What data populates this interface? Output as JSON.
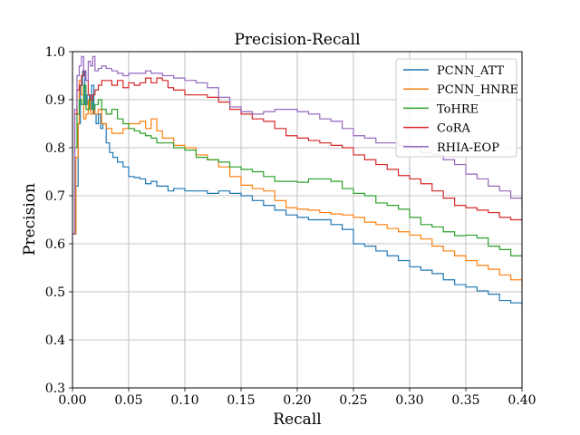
{
  "chart_data": {
    "type": "line",
    "title": "Precision-Recall",
    "xlabel": "Recall",
    "ylabel": "Precision",
    "xlim": [
      0.0,
      0.4
    ],
    "ylim": [
      0.3,
      1.0
    ],
    "grid": true,
    "legend_position": "top-right",
    "x_ticks": [
      "0.00",
      "0.05",
      "0.10",
      "0.15",
      "0.20",
      "0.25",
      "0.30",
      "0.35",
      "0.40"
    ],
    "y_ticks": [
      "0.3",
      "0.4",
      "0.5",
      "0.6",
      "0.7",
      "0.8",
      "0.9",
      "1.0"
    ],
    "series": [
      {
        "name": "PCNN_ATT",
        "color": "#1f77b4",
        "points": [
          [
            0.0,
            0.62
          ],
          [
            0.003,
            0.72
          ],
          [
            0.005,
            0.85
          ],
          [
            0.007,
            0.93
          ],
          [
            0.009,
            0.96
          ],
          [
            0.011,
            0.89
          ],
          [
            0.013,
            0.91
          ],
          [
            0.015,
            0.88
          ],
          [
            0.017,
            0.93
          ],
          [
            0.019,
            0.87
          ],
          [
            0.021,
            0.85
          ],
          [
            0.023,
            0.87
          ],
          [
            0.025,
            0.84
          ],
          [
            0.027,
            0.85
          ],
          [
            0.03,
            0.81
          ],
          [
            0.033,
            0.79
          ],
          [
            0.036,
            0.78
          ],
          [
            0.04,
            0.77
          ],
          [
            0.045,
            0.76
          ],
          [
            0.05,
            0.74
          ],
          [
            0.055,
            0.738
          ],
          [
            0.06,
            0.735
          ],
          [
            0.065,
            0.725
          ],
          [
            0.07,
            0.73
          ],
          [
            0.075,
            0.72
          ],
          [
            0.08,
            0.72
          ],
          [
            0.085,
            0.71
          ],
          [
            0.09,
            0.715
          ],
          [
            0.1,
            0.71
          ],
          [
            0.11,
            0.71
          ],
          [
            0.12,
            0.705
          ],
          [
            0.13,
            0.71
          ],
          [
            0.14,
            0.705
          ],
          [
            0.15,
            0.7
          ],
          [
            0.16,
            0.69
          ],
          [
            0.17,
            0.68
          ],
          [
            0.18,
            0.67
          ],
          [
            0.19,
            0.66
          ],
          [
            0.2,
            0.655
          ],
          [
            0.21,
            0.65
          ],
          [
            0.22,
            0.65
          ],
          [
            0.23,
            0.64
          ],
          [
            0.24,
            0.63
          ],
          [
            0.25,
            0.6
          ],
          [
            0.26,
            0.595
          ],
          [
            0.27,
            0.585
          ],
          [
            0.28,
            0.575
          ],
          [
            0.29,
            0.565
          ],
          [
            0.3,
            0.552
          ],
          [
            0.31,
            0.545
          ],
          [
            0.32,
            0.538
          ],
          [
            0.33,
            0.525
          ],
          [
            0.34,
            0.515
          ],
          [
            0.35,
            0.51
          ],
          [
            0.36,
            0.502
          ],
          [
            0.37,
            0.495
          ],
          [
            0.38,
            0.482
          ],
          [
            0.39,
            0.477
          ],
          [
            0.4,
            0.47
          ]
        ]
      },
      {
        "name": "PCNN_HNRE",
        "color": "#ff7f0e",
        "points": [
          [
            0.0,
            0.62
          ],
          [
            0.003,
            0.78
          ],
          [
            0.005,
            0.85
          ],
          [
            0.006,
            0.94
          ],
          [
            0.008,
            0.91
          ],
          [
            0.01,
            0.86
          ],
          [
            0.012,
            0.87
          ],
          [
            0.014,
            0.9
          ],
          [
            0.016,
            0.87
          ],
          [
            0.018,
            0.88
          ],
          [
            0.02,
            0.87
          ],
          [
            0.023,
            0.88
          ],
          [
            0.026,
            0.85
          ],
          [
            0.03,
            0.84
          ],
          [
            0.035,
            0.83
          ],
          [
            0.04,
            0.83
          ],
          [
            0.045,
            0.84
          ],
          [
            0.05,
            0.85
          ],
          [
            0.055,
            0.85
          ],
          [
            0.06,
            0.855
          ],
          [
            0.065,
            0.84
          ],
          [
            0.07,
            0.86
          ],
          [
            0.075,
            0.835
          ],
          [
            0.08,
            0.82
          ],
          [
            0.09,
            0.805
          ],
          [
            0.1,
            0.8
          ],
          [
            0.11,
            0.785
          ],
          [
            0.12,
            0.775
          ],
          [
            0.13,
            0.76
          ],
          [
            0.14,
            0.74
          ],
          [
            0.15,
            0.722
          ],
          [
            0.16,
            0.715
          ],
          [
            0.17,
            0.71
          ],
          [
            0.18,
            0.69
          ],
          [
            0.19,
            0.675
          ],
          [
            0.2,
            0.672
          ],
          [
            0.21,
            0.67
          ],
          [
            0.22,
            0.665
          ],
          [
            0.23,
            0.662
          ],
          [
            0.24,
            0.66
          ],
          [
            0.25,
            0.655
          ],
          [
            0.26,
            0.645
          ],
          [
            0.27,
            0.64
          ],
          [
            0.28,
            0.632
          ],
          [
            0.29,
            0.625
          ],
          [
            0.3,
            0.618
          ],
          [
            0.31,
            0.61
          ],
          [
            0.32,
            0.595
          ],
          [
            0.33,
            0.585
          ],
          [
            0.34,
            0.575
          ],
          [
            0.35,
            0.565
          ],
          [
            0.36,
            0.555
          ],
          [
            0.37,
            0.547
          ],
          [
            0.38,
            0.535
          ],
          [
            0.39,
            0.525
          ],
          [
            0.4,
            0.51
          ]
        ]
      },
      {
        "name": "ToHRE",
        "color": "#2ca02c",
        "points": [
          [
            0.0,
            0.62
          ],
          [
            0.002,
            0.8
          ],
          [
            0.004,
            0.87
          ],
          [
            0.006,
            0.9
          ],
          [
            0.008,
            0.89
          ],
          [
            0.01,
            0.93
          ],
          [
            0.012,
            0.88
          ],
          [
            0.015,
            0.9
          ],
          [
            0.018,
            0.88
          ],
          [
            0.02,
            0.89
          ],
          [
            0.023,
            0.9
          ],
          [
            0.026,
            0.88
          ],
          [
            0.03,
            0.87
          ],
          [
            0.035,
            0.88
          ],
          [
            0.04,
            0.86
          ],
          [
            0.045,
            0.85
          ],
          [
            0.05,
            0.84
          ],
          [
            0.055,
            0.835
          ],
          [
            0.06,
            0.83
          ],
          [
            0.065,
            0.825
          ],
          [
            0.07,
            0.82
          ],
          [
            0.075,
            0.81
          ],
          [
            0.08,
            0.81
          ],
          [
            0.09,
            0.8
          ],
          [
            0.1,
            0.795
          ],
          [
            0.11,
            0.78
          ],
          [
            0.12,
            0.775
          ],
          [
            0.13,
            0.77
          ],
          [
            0.14,
            0.76
          ],
          [
            0.15,
            0.755
          ],
          [
            0.16,
            0.75
          ],
          [
            0.17,
            0.74
          ],
          [
            0.18,
            0.73
          ],
          [
            0.19,
            0.73
          ],
          [
            0.2,
            0.728
          ],
          [
            0.21,
            0.735
          ],
          [
            0.22,
            0.735
          ],
          [
            0.23,
            0.73
          ],
          [
            0.24,
            0.715
          ],
          [
            0.25,
            0.705
          ],
          [
            0.26,
            0.7
          ],
          [
            0.27,
            0.685
          ],
          [
            0.28,
            0.68
          ],
          [
            0.29,
            0.672
          ],
          [
            0.3,
            0.655
          ],
          [
            0.31,
            0.64
          ],
          [
            0.32,
            0.635
          ],
          [
            0.33,
            0.625
          ],
          [
            0.34,
            0.617
          ],
          [
            0.35,
            0.618
          ],
          [
            0.36,
            0.612
          ],
          [
            0.37,
            0.595
          ],
          [
            0.38,
            0.588
          ],
          [
            0.39,
            0.575
          ],
          [
            0.4,
            0.567
          ]
        ]
      },
      {
        "name": "CoRA",
        "color": "#d62728",
        "points": [
          [
            0.0,
            0.62
          ],
          [
            0.002,
            0.87
          ],
          [
            0.004,
            0.92
          ],
          [
            0.006,
            0.93
          ],
          [
            0.008,
            0.95
          ],
          [
            0.01,
            0.96
          ],
          [
            0.012,
            0.94
          ],
          [
            0.014,
            0.91
          ],
          [
            0.016,
            0.9
          ],
          [
            0.018,
            0.91
          ],
          [
            0.02,
            0.92
          ],
          [
            0.023,
            0.93
          ],
          [
            0.026,
            0.94
          ],
          [
            0.03,
            0.94
          ],
          [
            0.035,
            0.93
          ],
          [
            0.04,
            0.94
          ],
          [
            0.045,
            0.925
          ],
          [
            0.05,
            0.935
          ],
          [
            0.055,
            0.93
          ],
          [
            0.06,
            0.935
          ],
          [
            0.065,
            0.945
          ],
          [
            0.07,
            0.935
          ],
          [
            0.075,
            0.945
          ],
          [
            0.08,
            0.94
          ],
          [
            0.085,
            0.925
          ],
          [
            0.09,
            0.92
          ],
          [
            0.1,
            0.91
          ],
          [
            0.11,
            0.91
          ],
          [
            0.12,
            0.905
          ],
          [
            0.13,
            0.895
          ],
          [
            0.14,
            0.88
          ],
          [
            0.15,
            0.87
          ],
          [
            0.16,
            0.86
          ],
          [
            0.17,
            0.855
          ],
          [
            0.18,
            0.84
          ],
          [
            0.19,
            0.825
          ],
          [
            0.2,
            0.82
          ],
          [
            0.21,
            0.815
          ],
          [
            0.22,
            0.81
          ],
          [
            0.23,
            0.805
          ],
          [
            0.24,
            0.8
          ],
          [
            0.25,
            0.785
          ],
          [
            0.26,
            0.775
          ],
          [
            0.27,
            0.765
          ],
          [
            0.28,
            0.755
          ],
          [
            0.29,
            0.742
          ],
          [
            0.3,
            0.735
          ],
          [
            0.31,
            0.725
          ],
          [
            0.32,
            0.71
          ],
          [
            0.33,
            0.695
          ],
          [
            0.34,
            0.68
          ],
          [
            0.35,
            0.675
          ],
          [
            0.36,
            0.67
          ],
          [
            0.37,
            0.665
          ],
          [
            0.38,
            0.655
          ],
          [
            0.39,
            0.65
          ],
          [
            0.4,
            0.645
          ]
        ]
      },
      {
        "name": "RHIA-EOP",
        "color": "#9467bd",
        "points": [
          [
            0.0,
            0.62
          ],
          [
            0.002,
            0.88
          ],
          [
            0.004,
            0.95
          ],
          [
            0.006,
            0.97
          ],
          [
            0.008,
            0.99
          ],
          [
            0.01,
            0.96
          ],
          [
            0.012,
            0.94
          ],
          [
            0.014,
            0.98
          ],
          [
            0.016,
            0.97
          ],
          [
            0.018,
            0.99
          ],
          [
            0.02,
            0.96
          ],
          [
            0.023,
            0.965
          ],
          [
            0.026,
            0.97
          ],
          [
            0.03,
            0.965
          ],
          [
            0.035,
            0.96
          ],
          [
            0.04,
            0.955
          ],
          [
            0.045,
            0.95
          ],
          [
            0.05,
            0.955
          ],
          [
            0.055,
            0.955
          ],
          [
            0.06,
            0.955
          ],
          [
            0.065,
            0.96
          ],
          [
            0.07,
            0.955
          ],
          [
            0.075,
            0.955
          ],
          [
            0.08,
            0.95
          ],
          [
            0.085,
            0.95
          ],
          [
            0.09,
            0.945
          ],
          [
            0.1,
            0.94
          ],
          [
            0.11,
            0.935
          ],
          [
            0.12,
            0.925
          ],
          [
            0.13,
            0.905
          ],
          [
            0.14,
            0.885
          ],
          [
            0.15,
            0.875
          ],
          [
            0.16,
            0.87
          ],
          [
            0.17,
            0.875
          ],
          [
            0.18,
            0.88
          ],
          [
            0.19,
            0.88
          ],
          [
            0.2,
            0.875
          ],
          [
            0.21,
            0.87
          ],
          [
            0.22,
            0.86
          ],
          [
            0.23,
            0.855
          ],
          [
            0.24,
            0.84
          ],
          [
            0.25,
            0.825
          ],
          [
            0.26,
            0.82
          ],
          [
            0.27,
            0.81
          ],
          [
            0.28,
            0.81
          ],
          [
            0.29,
            0.805
          ],
          [
            0.3,
            0.8
          ],
          [
            0.31,
            0.79
          ],
          [
            0.32,
            0.785
          ],
          [
            0.33,
            0.775
          ],
          [
            0.34,
            0.765
          ],
          [
            0.35,
            0.745
          ],
          [
            0.36,
            0.735
          ],
          [
            0.37,
            0.72
          ],
          [
            0.38,
            0.71
          ],
          [
            0.39,
            0.695
          ],
          [
            0.4,
            0.68
          ]
        ]
      }
    ]
  }
}
